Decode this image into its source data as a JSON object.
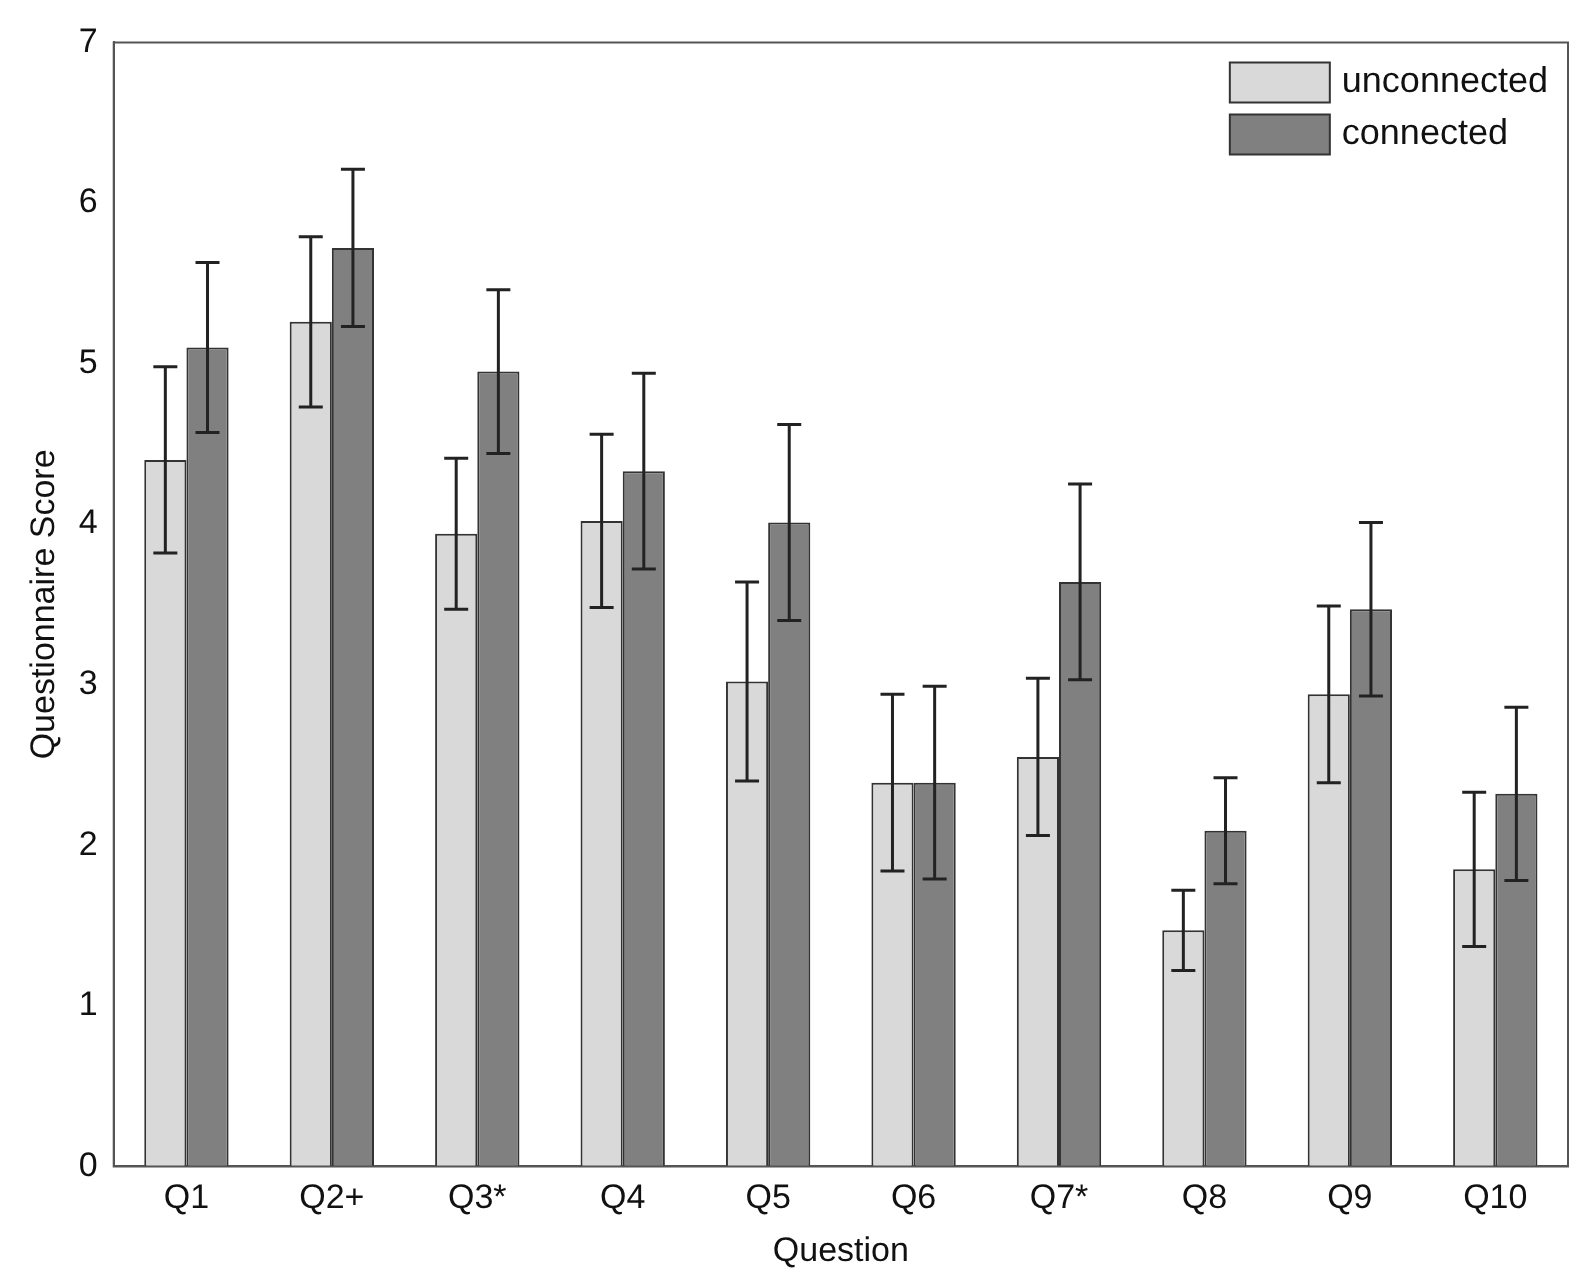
{
  "chart_data": {
    "type": "bar",
    "xlabel": "Question",
    "ylabel": "Questionnaire Score",
    "categories": [
      "Q1",
      "Q2+",
      "Q3*",
      "Q4",
      "Q5",
      "Q6",
      "Q7*",
      "Q8",
      "Q9",
      "Q10"
    ],
    "series": [
      {
        "name": "unconnected",
        "color": "#d9d9d9",
        "values": [
          4.4,
          5.26,
          3.94,
          4.02,
          3.02,
          2.39,
          2.55,
          1.47,
          2.94,
          1.85
        ],
        "errors": [
          0.58,
          0.53,
          0.47,
          0.54,
          0.62,
          0.55,
          0.49,
          0.25,
          0.55,
          0.48
        ]
      },
      {
        "name": "connected",
        "color": "#808080",
        "values": [
          5.1,
          5.72,
          4.95,
          4.33,
          4.01,
          2.39,
          3.64,
          2.09,
          3.47,
          2.32
        ],
        "errors": [
          0.53,
          0.49,
          0.51,
          0.61,
          0.61,
          0.6,
          0.61,
          0.33,
          0.54,
          0.54
        ]
      }
    ],
    "ylim": [
      0,
      7
    ],
    "yticks": [
      0,
      1,
      2,
      3,
      4,
      5,
      6,
      7
    ],
    "grid": false,
    "legend": "top right"
  }
}
